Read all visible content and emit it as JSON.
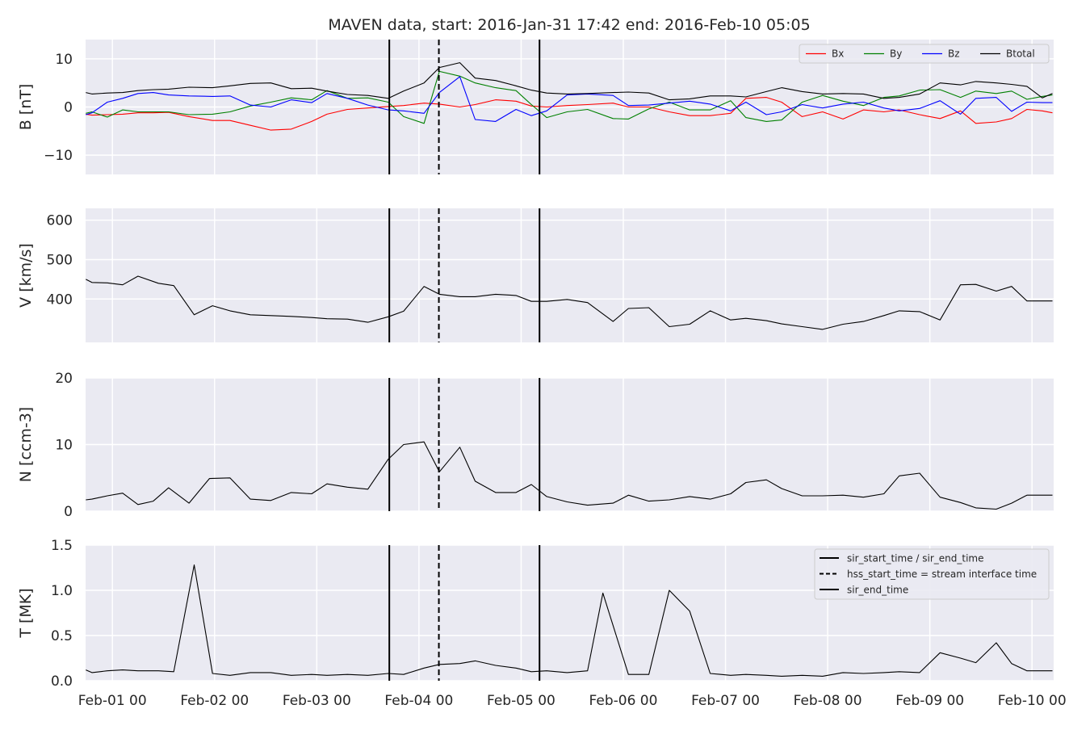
{
  "title": "MAVEN data, start: 2016-Jan-31 17:42  end: 2016-Feb-10 05:05",
  "x_ticks": [
    "Feb-01 00",
    "Feb-02 00",
    "Feb-03 00",
    "Feb-04 00",
    "Feb-05 00",
    "Feb-06 00",
    "Feb-07 00",
    "Feb-08 00",
    "Feb-09 00",
    "Feb-10 00"
  ],
  "events": {
    "sir_start_day": 3.71,
    "hss_start_day": 4.195,
    "sir_end_day": 5.18
  },
  "legend_b": {
    "placement": "upper-right",
    "entries": [
      {
        "label": "Bx",
        "color": "#ff0000"
      },
      {
        "label": "By",
        "color": "#008000"
      },
      {
        "label": "Bz",
        "color": "#0000ff"
      },
      {
        "label": "Btotal",
        "color": "#000000"
      }
    ]
  },
  "legend_t": {
    "placement": "upper-right",
    "entries": [
      {
        "label": "sir_start_time / sir_end_time",
        "style": "solid"
      },
      {
        "label": "hss_start_time = stream interface time",
        "style": "dashed"
      },
      {
        "label": "sir_end_time",
        "style": "solid"
      }
    ]
  },
  "chart_data": [
    {
      "type": "line",
      "ylabel": "B [nT]",
      "ylim": [
        -14,
        14
      ],
      "yticks": [
        {
          "v": 10,
          "label": "10"
        },
        {
          "v": 0,
          "label": "0"
        },
        {
          "v": -10,
          "label": "−10"
        }
      ],
      "x_day_range": [
        0.7375,
        10.2118
      ],
      "x": [
        0.74,
        0.8,
        0.95,
        1.1,
        1.25,
        1.4,
        1.55,
        1.75,
        1.98,
        2.15,
        2.35,
        2.55,
        2.75,
        2.95,
        3.1,
        3.3,
        3.5,
        3.7,
        3.85,
        4.05,
        4.2,
        4.4,
        4.55,
        4.75,
        4.95,
        5.1,
        5.25,
        5.45,
        5.65,
        5.9,
        6.05,
        6.25,
        6.45,
        6.65,
        6.85,
        7.05,
        7.2,
        7.4,
        7.55,
        7.75,
        7.95,
        8.15,
        8.35,
        8.55,
        8.7,
        8.9,
        9.1,
        9.3,
        9.45,
        9.65,
        9.8,
        9.95,
        10.1,
        10.2
      ],
      "series": [
        {
          "name": "Bx",
          "color": "#ff0000",
          "values": [
            -1.5,
            -1.7,
            -1.6,
            -1.5,
            -1.2,
            -1.2,
            -1.1,
            -2.0,
            -2.8,
            -2.8,
            -3.8,
            -4.8,
            -4.6,
            -3.0,
            -1.5,
            -0.5,
            -0.2,
            0.1,
            0.3,
            0.8,
            0.6,
            0.0,
            0.5,
            1.5,
            1.2,
            0.2,
            0.0,
            0.3,
            0.5,
            0.8,
            0.0,
            0.0,
            -1.0,
            -1.8,
            -1.8,
            -1.3,
            1.8,
            2.0,
            1.0,
            -2.0,
            -1.0,
            -2.5,
            -0.6,
            -1.0,
            -0.6,
            -1.6,
            -2.4,
            -0.8,
            -3.4,
            -3.1,
            -2.4,
            -0.5,
            -0.8,
            -1.2
          ]
        },
        {
          "name": "By",
          "color": "#008000",
          "values": [
            -1.3,
            -1.0,
            -2.1,
            -0.6,
            -1.0,
            -1.0,
            -1.0,
            -1.6,
            -1.5,
            -1.0,
            0.2,
            1.0,
            1.9,
            1.5,
            3.4,
            1.8,
            1.9,
            1.0,
            -2.0,
            -3.4,
            7.4,
            6.4,
            5.0,
            4.0,
            3.4,
            0.5,
            -2.2,
            -1.0,
            -0.5,
            -2.4,
            -2.5,
            -0.4,
            1.0,
            -0.6,
            -0.6,
            1.3,
            -2.2,
            -3.0,
            -2.7,
            1.0,
            2.4,
            1.2,
            0.3,
            2.0,
            2.3,
            3.5,
            3.6,
            2.0,
            3.3,
            2.8,
            3.3,
            1.6,
            2.2,
            2.5
          ]
        },
        {
          "name": "Bz",
          "color": "#0000ff",
          "values": [
            -1.6,
            -1.2,
            1.0,
            1.8,
            2.8,
            3.0,
            2.5,
            2.3,
            2.2,
            2.3,
            0.4,
            0.0,
            1.5,
            0.9,
            2.8,
            1.8,
            0.4,
            -0.6,
            -0.8,
            -1.3,
            3.0,
            6.3,
            -2.6,
            -3.0,
            -0.5,
            -1.8,
            -0.8,
            2.5,
            2.7,
            2.4,
            0.3,
            0.4,
            0.8,
            1.2,
            0.6,
            -0.8,
            1.0,
            -1.6,
            -1.0,
            0.5,
            -0.2,
            0.6,
            1.0,
            -0.2,
            -0.8,
            -0.3,
            1.3,
            -1.5,
            1.8,
            2.0,
            -0.9,
            1.0,
            0.9,
            0.9
          ]
        },
        {
          "name": "Btotal",
          "color": "#000000",
          "values": [
            3.0,
            2.7,
            2.9,
            3.0,
            3.4,
            3.6,
            3.7,
            4.1,
            4.0,
            4.4,
            4.9,
            5.0,
            3.8,
            3.9,
            3.3,
            2.6,
            2.4,
            1.8,
            3.3,
            5.0,
            8.2,
            9.2,
            6.0,
            5.5,
            4.4,
            3.5,
            2.9,
            2.7,
            2.8,
            3.0,
            3.1,
            2.9,
            1.5,
            1.7,
            2.3,
            2.3,
            2.1,
            3.2,
            4.0,
            3.2,
            2.7,
            2.8,
            2.7,
            1.8,
            2.0,
            2.7,
            5.0,
            4.6,
            5.3,
            5.0,
            4.7,
            4.3,
            1.9,
            2.8
          ]
        }
      ]
    },
    {
      "type": "line",
      "ylabel": "V [km/s]",
      "ylim": [
        290,
        630
      ],
      "yticks": [
        {
          "v": 600,
          "label": "600"
        },
        {
          "v": 500,
          "label": "500"
        },
        {
          "v": 400,
          "label": "400"
        }
      ],
      "x_day_range": [
        0.7375,
        10.2118
      ],
      "x": [
        0.74,
        0.8,
        0.95,
        1.1,
        1.25,
        1.45,
        1.6,
        1.8,
        1.98,
        2.15,
        2.35,
        2.55,
        2.75,
        2.95,
        3.1,
        3.3,
        3.5,
        3.7,
        3.85,
        4.05,
        4.2,
        4.4,
        4.55,
        4.75,
        4.95,
        5.1,
        5.25,
        5.45,
        5.65,
        5.9,
        6.05,
        6.25,
        6.45,
        6.65,
        6.85,
        7.05,
        7.2,
        7.4,
        7.55,
        7.75,
        7.95,
        8.15,
        8.35,
        8.55,
        8.7,
        8.9,
        9.1,
        9.3,
        9.45,
        9.65,
        9.8,
        9.95,
        10.1,
        10.2
      ],
      "series": [
        {
          "name": "",
          "color": "#000000",
          "values": [
            450,
            442,
            441,
            436,
            458,
            440,
            434,
            360,
            383,
            370,
            360,
            358,
            356,
            353,
            350,
            349,
            341,
            355,
            369,
            432,
            412,
            406,
            406,
            412,
            409,
            394,
            394,
            399,
            391,
            343,
            376,
            378,
            330,
            336,
            370,
            347,
            351,
            345,
            337,
            330,
            323,
            336,
            343,
            358,
            370,
            368,
            347,
            436,
            437,
            420,
            432,
            395,
            395,
            395
          ]
        }
      ]
    },
    {
      "type": "line",
      "ylabel": "N [ccm-3]",
      "ylim": [
        0,
        20
      ],
      "yticks": [
        {
          "v": 20,
          "label": "20"
        },
        {
          "v": 10,
          "label": "10"
        },
        {
          "v": 0,
          "label": "0"
        }
      ],
      "x_day_range": [
        0.7375,
        10.2118
      ],
      "x": [
        0.74,
        0.8,
        0.95,
        1.1,
        1.25,
        1.4,
        1.55,
        1.75,
        1.95,
        2.15,
        2.35,
        2.55,
        2.75,
        2.95,
        3.1,
        3.3,
        3.5,
        3.7,
        3.85,
        4.05,
        4.2,
        4.4,
        4.55,
        4.75,
        4.95,
        5.1,
        5.25,
        5.45,
        5.65,
        5.9,
        6.05,
        6.25,
        6.45,
        6.65,
        6.85,
        7.05,
        7.2,
        7.4,
        7.55,
        7.75,
        7.95,
        8.15,
        8.35,
        8.55,
        8.7,
        8.9,
        9.1,
        9.3,
        9.45,
        9.65,
        9.8,
        9.95,
        10.1,
        10.2
      ],
      "series": [
        {
          "name": "",
          "color": "#000000",
          "values": [
            1.7,
            1.8,
            2.3,
            2.7,
            1.0,
            1.5,
            3.5,
            1.2,
            4.9,
            5.0,
            1.8,
            1.6,
            2.8,
            2.6,
            4.1,
            3.6,
            3.3,
            7.8,
            10.0,
            10.4,
            5.9,
            9.6,
            4.5,
            2.8,
            2.8,
            4.0,
            2.2,
            1.4,
            0.9,
            1.2,
            2.4,
            1.5,
            1.7,
            2.2,
            1.8,
            2.6,
            4.3,
            4.7,
            3.4,
            2.3,
            2.3,
            2.4,
            2.1,
            2.6,
            5.3,
            5.7,
            2.1,
            1.3,
            0.5,
            0.3,
            1.2,
            2.4,
            2.4,
            2.4
          ]
        }
      ]
    },
    {
      "type": "line",
      "ylabel": "T [MK]",
      "ylim": [
        0,
        1.5
      ],
      "yticks": [
        {
          "v": 1.5,
          "label": "1.5"
        },
        {
          "v": 1.0,
          "label": "1.0"
        },
        {
          "v": 0.5,
          "label": "0.5"
        },
        {
          "v": 0.0,
          "label": "0.0"
        }
      ],
      "x_day_range": [
        0.7375,
        10.2118
      ],
      "x": [
        0.74,
        0.8,
        0.95,
        1.1,
        1.25,
        1.45,
        1.6,
        1.8,
        1.98,
        2.15,
        2.35,
        2.55,
        2.75,
        2.95,
        3.1,
        3.3,
        3.5,
        3.7,
        3.85,
        4.05,
        4.2,
        4.4,
        4.55,
        4.75,
        4.95,
        5.1,
        5.25,
        5.45,
        5.65,
        5.8,
        6.05,
        6.25,
        6.45,
        6.65,
        6.85,
        7.05,
        7.2,
        7.4,
        7.55,
        7.75,
        7.95,
        8.15,
        8.35,
        8.55,
        8.7,
        8.9,
        9.1,
        9.3,
        9.45,
        9.65,
        9.8,
        9.95,
        10.1,
        10.2
      ],
      "series": [
        {
          "name": "",
          "color": "#000000",
          "values": [
            0.12,
            0.09,
            0.11,
            0.12,
            0.11,
            0.11,
            0.1,
            1.28,
            0.08,
            0.06,
            0.09,
            0.09,
            0.06,
            0.07,
            0.06,
            0.07,
            0.06,
            0.08,
            0.07,
            0.14,
            0.18,
            0.19,
            0.22,
            0.17,
            0.14,
            0.1,
            0.11,
            0.09,
            0.11,
            0.97,
            0.07,
            0.07,
            1.0,
            0.77,
            0.08,
            0.06,
            0.07,
            0.06,
            0.05,
            0.06,
            0.05,
            0.09,
            0.08,
            0.09,
            0.1,
            0.09,
            0.31,
            0.25,
            0.2,
            0.42,
            0.19,
            0.11,
            0.11,
            0.11
          ]
        }
      ]
    }
  ]
}
